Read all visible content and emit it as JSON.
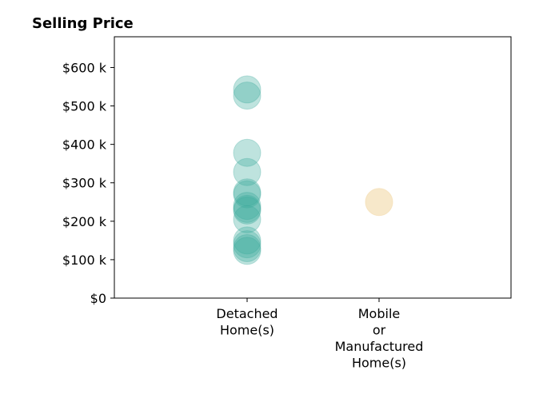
{
  "chart_data": {
    "type": "scatter",
    "title": "Selling Price",
    "xlabel": "",
    "ylabel": "",
    "categories": [
      [
        "Detached",
        "Home(s)"
      ],
      [
        "Mobile",
        "or",
        "Manufactured",
        "Home(s)"
      ]
    ],
    "ylim": [
      0,
      680000
    ],
    "y_ticks": [
      {
        "value": 0,
        "label": "$0"
      },
      {
        "value": 100000,
        "label": "$100 k"
      },
      {
        "value": 200000,
        "label": "$200 k"
      },
      {
        "value": 300000,
        "label": "$300 k"
      },
      {
        "value": 400000,
        "label": "$400 k"
      },
      {
        "value": 500000,
        "label": "$500 k"
      },
      {
        "value": 600000,
        "label": "$600 k"
      }
    ],
    "grid": false,
    "legend": "none",
    "series": [
      {
        "category_index": 0,
        "color": "#3aa99a",
        "opacity": 0.33,
        "values": [
          543000,
          527000,
          378000,
          328000,
          275000,
          270000,
          240000,
          232000,
          228000,
          205000,
          150000,
          140000,
          130000,
          123000
        ]
      },
      {
        "category_index": 1,
        "color": "#f2d9a6",
        "opacity": 0.6,
        "values": [
          250000
        ]
      }
    ]
  }
}
